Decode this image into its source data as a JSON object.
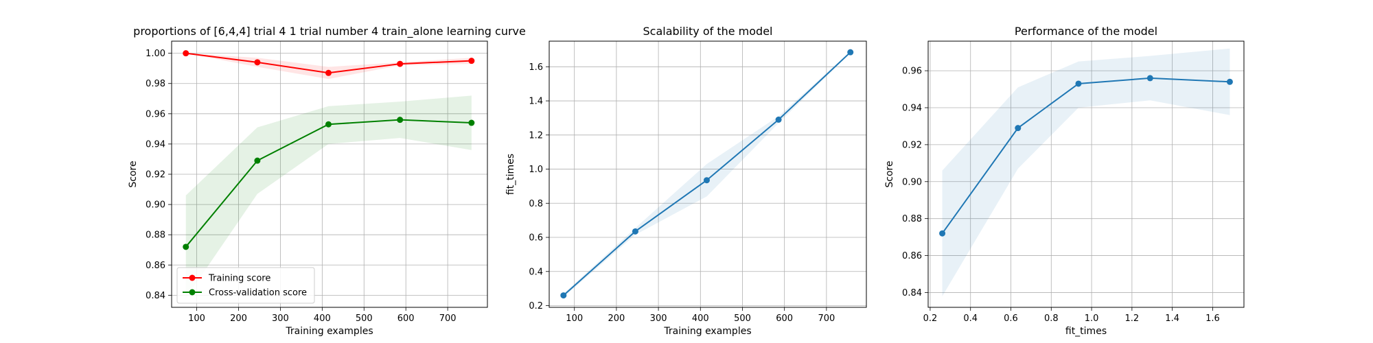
{
  "chart_data": [
    {
      "type": "line",
      "title": "proportions of [6,4,4] trial 4 1 trial number 4 train_alone learning curve",
      "xlabel": "Training examples",
      "ylabel": "Score",
      "xlim": [
        40,
        795
      ],
      "ylim": [
        0.832,
        1.008
      ],
      "xticks": [
        100,
        200,
        300,
        400,
        500,
        600,
        700
      ],
      "yticks": [
        0.84,
        0.86,
        0.88,
        0.9,
        0.92,
        0.94,
        0.96,
        0.98,
        1.0
      ],
      "x": [
        74,
        245,
        415,
        586,
        757
      ],
      "series": [
        {
          "name": "Training score",
          "color": "#ff0000",
          "values": [
            1.0,
            0.994,
            0.987,
            0.993,
            0.995
          ],
          "band_low": [
            1.0,
            0.991,
            0.983,
            0.992,
            0.993
          ],
          "band_high": [
            1.0,
            0.997,
            0.991,
            0.994,
            0.997
          ]
        },
        {
          "name": "Cross-validation score",
          "color": "#008000",
          "values": [
            0.872,
            0.929,
            0.953,
            0.956,
            0.954
          ],
          "band_low": [
            0.838,
            0.907,
            0.94,
            0.944,
            0.936
          ],
          "band_high": [
            0.906,
            0.951,
            0.965,
            0.968,
            0.972
          ]
        }
      ],
      "legend": "lower-left",
      "grid": true
    },
    {
      "type": "line",
      "title": "Scalability of the model",
      "xlabel": "Training examples",
      "ylabel": "fit_times",
      "xlim": [
        40,
        795
      ],
      "ylim": [
        0.19,
        1.75
      ],
      "xticks": [
        100,
        200,
        300,
        400,
        500,
        600,
        700
      ],
      "yticks": [
        0.2,
        0.4,
        0.6,
        0.8,
        1.0,
        1.2,
        1.4,
        1.6
      ],
      "x": [
        74,
        245,
        415,
        586,
        757
      ],
      "series": [
        {
          "color": "#1f77b4",
          "values": [
            0.26,
            0.635,
            0.935,
            1.29,
            1.685
          ],
          "band_low": [
            0.25,
            0.615,
            0.84,
            1.27,
            1.68
          ],
          "band_high": [
            0.27,
            0.655,
            1.03,
            1.31,
            1.69
          ]
        }
      ],
      "grid": true
    },
    {
      "type": "line",
      "title": "Performance of the model",
      "xlabel": "fit_times",
      "ylabel": "Score",
      "xlim": [
        0.19,
        1.755
      ],
      "ylim": [
        0.832,
        0.976
      ],
      "xticks": [
        0.2,
        0.4,
        0.6,
        0.8,
        1.0,
        1.2,
        1.4,
        1.6
      ],
      "yticks": [
        0.84,
        0.86,
        0.88,
        0.9,
        0.92,
        0.94,
        0.96
      ],
      "x": [
        0.26,
        0.635,
        0.935,
        1.29,
        1.685
      ],
      "series": [
        {
          "color": "#1f77b4",
          "values": [
            0.872,
            0.929,
            0.953,
            0.956,
            0.954
          ],
          "band_low": [
            0.838,
            0.907,
            0.94,
            0.944,
            0.936
          ],
          "band_high": [
            0.906,
            0.951,
            0.965,
            0.968,
            0.972
          ]
        }
      ],
      "grid": true
    }
  ]
}
